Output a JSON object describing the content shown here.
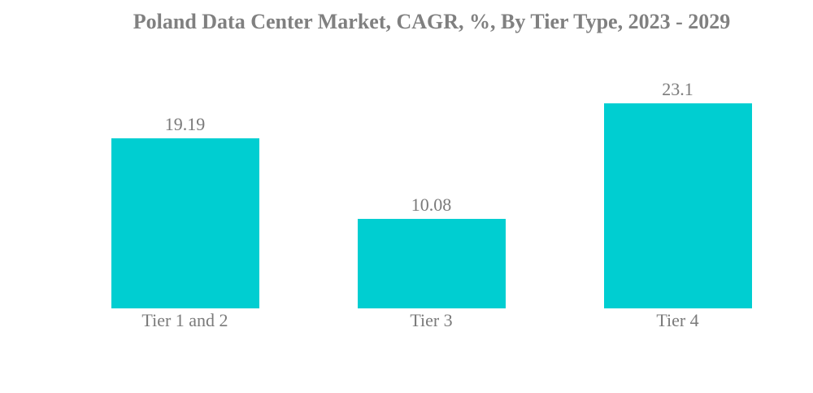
{
  "chart_data": {
    "type": "bar",
    "title": "Poland Data Center Market, CAGR, %, By Tier Type, 2023 - 2029",
    "categories": [
      "Tier 1 and 2",
      "Tier 3",
      "Tier 4"
    ],
    "values": [
      19.19,
      10.08,
      23.1
    ],
    "value_labels": [
      "19.19",
      "10.08",
      "23.1"
    ],
    "xlabel": "",
    "ylabel": "",
    "ylim": [
      0,
      34.8
    ],
    "grid": false,
    "legend": false,
    "axes_visible": false,
    "bar_color": "#00CED1",
    "title_color": "#808080",
    "label_color": "#7a7a7a",
    "background_color": "#ffffff"
  }
}
